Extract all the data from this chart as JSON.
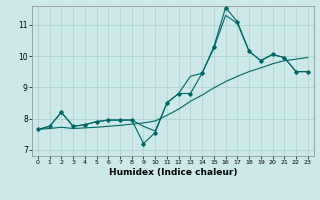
{
  "xlabel": "Humidex (Indice chaleur)",
  "background_color": "#cce8e8",
  "grid_color": "#aacfcf",
  "line_color": "#006666",
  "xlim": [
    -0.5,
    23.5
  ],
  "ylim": [
    6.8,
    11.6
  ],
  "xticks": [
    0,
    1,
    2,
    3,
    4,
    5,
    6,
    7,
    8,
    9,
    10,
    11,
    12,
    13,
    14,
    15,
    16,
    17,
    18,
    19,
    20,
    21,
    22,
    23
  ],
  "yticks": [
    7,
    8,
    9,
    10,
    11
  ],
  "x_values": [
    0,
    1,
    2,
    3,
    4,
    5,
    6,
    7,
    8,
    9,
    10,
    11,
    12,
    13,
    14,
    15,
    16,
    17,
    18,
    19,
    20,
    21,
    22,
    23
  ],
  "y_main": [
    7.65,
    7.75,
    8.2,
    7.75,
    7.8,
    7.9,
    7.95,
    7.95,
    7.95,
    7.2,
    7.55,
    8.5,
    8.8,
    8.8,
    9.45,
    10.3,
    11.55,
    11.1,
    10.15,
    9.85,
    10.05,
    9.95,
    9.5,
    9.5
  ],
  "y_upper": [
    7.65,
    7.75,
    8.2,
    7.75,
    7.8,
    7.9,
    7.95,
    7.95,
    7.95,
    7.75,
    7.6,
    8.5,
    8.8,
    9.35,
    9.45,
    10.25,
    11.3,
    11.05,
    10.15,
    9.85,
    10.05,
    9.95,
    9.5,
    9.5
  ],
  "y_lower": [
    7.65,
    7.68,
    7.72,
    7.68,
    7.7,
    7.72,
    7.75,
    7.78,
    7.82,
    7.86,
    7.92,
    8.1,
    8.3,
    8.55,
    8.75,
    8.98,
    9.18,
    9.35,
    9.5,
    9.62,
    9.75,
    9.85,
    9.9,
    9.95
  ]
}
